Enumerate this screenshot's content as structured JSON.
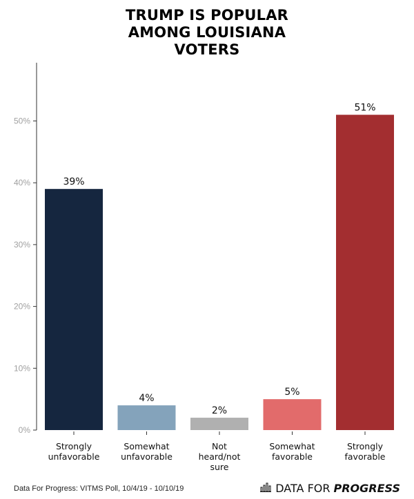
{
  "title_lines": [
    "TRUMP IS POPULAR",
    "AMONG LOUISIANA",
    "VOTERS"
  ],
  "source": "Data For Progress: VITMS Poll, 10/4/19 - 10/10/19",
  "brand": {
    "prefix": "DATA FOR",
    "emphasis": "PROGRESS",
    "icon": "bar-chart-icon"
  },
  "chart_data": {
    "type": "bar",
    "title": "TRUMP IS POPULAR AMONG LOUISIANA VOTERS",
    "categories": [
      [
        "Strongly",
        "unfavorable"
      ],
      [
        "Somewhat",
        "unfavorable"
      ],
      [
        "Not",
        "heard/not",
        "sure"
      ],
      [
        "Somewhat",
        "favorable"
      ],
      [
        "Strongly",
        "favorable"
      ]
    ],
    "values": [
      39,
      4,
      2,
      5,
      51
    ],
    "data_labels": [
      "39%",
      "4%",
      "2%",
      "5%",
      "51%"
    ],
    "colors": [
      "#15263f",
      "#84a3bb",
      "#b0b0b0",
      "#e26b6b",
      "#a32e30"
    ],
    "yticks": [
      0,
      10,
      20,
      30,
      40,
      50
    ],
    "ytick_labels": [
      "0%",
      "10%",
      "20%",
      "30%",
      "40%",
      "50%"
    ],
    "ylim": [
      0,
      59
    ],
    "xlabel": "",
    "ylabel": "",
    "grid": false,
    "legend": "none"
  }
}
